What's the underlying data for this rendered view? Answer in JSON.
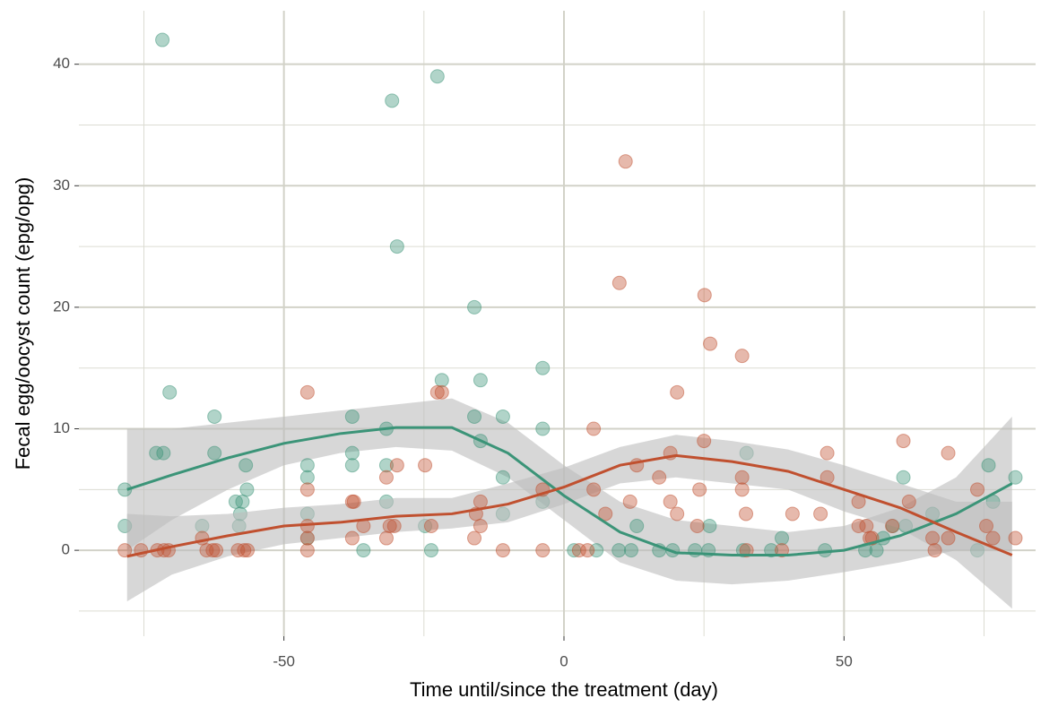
{
  "chart_data": {
    "type": "scatter",
    "x_label": "Time until/since the treatment (day)",
    "y_label": "Fecal egg/oocyst count (epg/opg)",
    "xlim": [
      -86.6,
      84.2
    ],
    "ylim": [
      -7.07,
      44.4
    ],
    "xticks": [
      -50,
      0,
      50
    ],
    "yticks": [
      0,
      10,
      20,
      30,
      40
    ],
    "x_minor_grid": [
      -75,
      -25,
      25,
      75
    ],
    "y_minor_grid": [
      -5,
      5,
      15,
      25,
      35
    ],
    "grid": true,
    "band_color": "#bdbdbd",
    "series": [
      {
        "color": "#3b9478",
        "x": [
          -71.7,
          -78.4,
          -78.4,
          -72.8,
          -71.5,
          -70.4,
          -64.6,
          -62.4,
          -62.4,
          -58.6,
          -57.4,
          -56.8,
          -56.6,
          -57.8,
          -58,
          -45.8,
          -45.8,
          -45.8,
          -45.8,
          -37.8,
          -37.8,
          -37.8,
          -35.8,
          -31.7,
          -31.7,
          -31.7,
          -30.7,
          -29.8,
          -24.8,
          -23.7,
          -22.6,
          -21.8,
          -16,
          -16,
          -14.9,
          -14.9,
          -10.9,
          -10.9,
          -10.9,
          -3.8,
          -3.8,
          -3.8,
          1.8,
          5.8,
          9.8,
          12,
          13,
          17,
          19.4,
          23.4,
          25.8,
          26,
          32.6,
          32,
          37,
          38.9,
          46.6,
          53.8,
          55.8,
          57,
          58.7,
          60.6,
          61,
          65.8,
          73.8,
          75.8,
          76.6,
          80.6
        ],
        "values": [
          42,
          5,
          2,
          8,
          8,
          13,
          2,
          11,
          8,
          4,
          4,
          7,
          5,
          3,
          2,
          7,
          6,
          3,
          1,
          11,
          8,
          7,
          0,
          10,
          7,
          4,
          37,
          25,
          2,
          0,
          39,
          14,
          20,
          11,
          14,
          9,
          11,
          6,
          3,
          15,
          10,
          4,
          0,
          0,
          0,
          0,
          2,
          0,
          0,
          0,
          0,
          2,
          8,
          0,
          0,
          1,
          0,
          0,
          0,
          1,
          2,
          6,
          2,
          3,
          0,
          7,
          4,
          6
        ],
        "smooth_x": [
          -78,
          -70,
          -60,
          -50,
          -40,
          -30,
          -20,
          -10,
          0,
          10,
          20,
          30,
          40,
          50,
          60,
          70,
          80
        ],
        "smooth": [
          5,
          6.2,
          7.6,
          8.8,
          9.6,
          10.1,
          10.1,
          8,
          4.5,
          1.5,
          -0.2,
          -0.4,
          -0.4,
          0,
          1.2,
          3,
          5.5
        ],
        "smooth_lower": [
          0,
          2.5,
          5,
          7,
          8,
          8.5,
          8.2,
          6,
          2.5,
          -1,
          -2.5,
          -2.8,
          -2.5,
          -1.8,
          -1,
          0,
          0
        ],
        "smooth_upper": [
          10,
          10,
          10.5,
          11,
          11.5,
          12,
          12.5,
          10.5,
          7,
          4,
          2.5,
          2,
          1.5,
          2,
          3.5,
          6,
          11
        ]
      },
      {
        "color": "#c0502f",
        "x": [
          -78.4,
          -75.5,
          -72.6,
          -71.4,
          -70.6,
          -64.6,
          -63.8,
          -62.7,
          -62.1,
          -58.2,
          -57.1,
          -56.5,
          -45.8,
          -45.8,
          -45.8,
          -45.8,
          -45.8,
          -37.8,
          -37.5,
          -37.8,
          -35.8,
          -31.7,
          -31.7,
          -31.1,
          -30.3,
          -29.8,
          -24.8,
          -23.7,
          -22.6,
          -21.8,
          -16,
          -15.7,
          -14.9,
          -14.9,
          -10.9,
          -3.8,
          -3.8,
          2.7,
          4.2,
          5.3,
          5.3,
          7.4,
          11,
          9.9,
          11.8,
          13,
          17,
          19,
          19,
          20.2,
          20.2,
          23.8,
          24.2,
          25,
          25.1,
          26.1,
          31.8,
          31.8,
          31.8,
          32.5,
          32.6,
          38.9,
          40.8,
          45.8,
          47,
          47,
          52.6,
          52.6,
          54,
          54.6,
          55,
          58.6,
          60.6,
          61.6,
          65.8,
          66.2,
          68.6,
          68.6,
          73.8,
          75.4,
          76.6,
          80.6
        ],
        "values": [
          0,
          0,
          0,
          0,
          0,
          1,
          0,
          0,
          0,
          0,
          0,
          0,
          13,
          5,
          2,
          1,
          0,
          4,
          4,
          1,
          2,
          6,
          1,
          2,
          2,
          7,
          7,
          2,
          13,
          13,
          1,
          3,
          4,
          2,
          0,
          0,
          5,
          0,
          0,
          5,
          10,
          3,
          32,
          22,
          4,
          7,
          6,
          4,
          8,
          13,
          3,
          2,
          5,
          9,
          21,
          17,
          16,
          5,
          6,
          3,
          0,
          0,
          3,
          3,
          8,
          6,
          4,
          2,
          2,
          1,
          1,
          2,
          9,
          4,
          1,
          0,
          8,
          1,
          5,
          2,
          1,
          1
        ],
        "smooth_x": [
          -78,
          -70,
          -60,
          -50,
          -40,
          -30,
          -20,
          -10,
          0,
          10,
          20,
          30,
          40,
          50,
          60,
          70,
          80
        ],
        "smooth": [
          -0.5,
          0.3,
          1.2,
          2,
          2.3,
          2.8,
          3,
          3.8,
          5.2,
          7,
          7.8,
          7.3,
          6.5,
          5,
          3.5,
          1.5,
          -0.4
        ],
        "smooth_lower": [
          -4.2,
          -2,
          -0.5,
          0.5,
          1,
          1.5,
          1.8,
          2.3,
          3.8,
          5.5,
          6,
          5.5,
          5,
          3.2,
          1.8,
          -0.8,
          -4.8
        ],
        "smooth_upper": [
          3,
          2.8,
          3,
          3.5,
          3.8,
          4.3,
          4.3,
          5.5,
          6.8,
          8.5,
          9.5,
          9,
          8.3,
          7,
          5.5,
          4,
          4
        ]
      }
    ]
  }
}
